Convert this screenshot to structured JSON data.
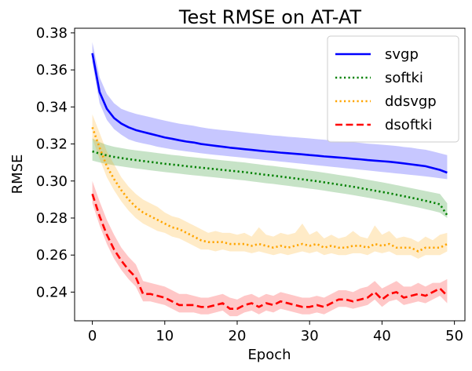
{
  "chart_data": {
    "type": "line",
    "title": "Test RMSE on AT-AT",
    "xlabel": "Epoch",
    "ylabel": "RMSE",
    "xlim": [
      -2.45,
      51.45
    ],
    "ylim": [
      0.2245,
      0.3825
    ],
    "xticks": [
      0,
      10,
      20,
      30,
      40,
      50
    ],
    "yticks": [
      0.24,
      0.26,
      0.28,
      0.3,
      0.32,
      0.34,
      0.36,
      0.38
    ],
    "ytick_labels": [
      "0.24",
      "0.26",
      "0.28",
      "0.30",
      "0.32",
      "0.34",
      "0.36",
      "0.38"
    ],
    "legend_position": "top-right",
    "x": [
      0,
      1,
      2,
      3,
      4,
      5,
      6,
      7,
      8,
      9,
      10,
      11,
      12,
      13,
      14,
      15,
      16,
      17,
      18,
      19,
      20,
      21,
      22,
      23,
      24,
      25,
      26,
      27,
      28,
      29,
      30,
      31,
      32,
      33,
      34,
      35,
      36,
      37,
      38,
      39,
      40,
      41,
      42,
      43,
      44,
      45,
      46,
      47,
      48,
      49
    ],
    "series": [
      {
        "name": "svgp",
        "color": "#0000ff",
        "band_color": "#0000ff",
        "dash": "solid",
        "values": [
          0.369,
          0.348,
          0.339,
          0.334,
          0.331,
          0.329,
          0.3275,
          0.3265,
          0.3255,
          0.3245,
          0.3235,
          0.3228,
          0.322,
          0.3213,
          0.3208,
          0.32,
          0.3195,
          0.319,
          0.3185,
          0.318,
          0.3176,
          0.3172,
          0.3168,
          0.3164,
          0.316,
          0.3157,
          0.3153,
          0.315,
          0.3147,
          0.3144,
          0.314,
          0.3137,
          0.3133,
          0.313,
          0.3127,
          0.3124,
          0.312,
          0.3117,
          0.3113,
          0.311,
          0.3107,
          0.3104,
          0.31,
          0.3095,
          0.309,
          0.3085,
          0.308,
          0.307,
          0.306,
          0.3045
        ],
        "upper": [
          0.375,
          0.356,
          0.347,
          0.342,
          0.339,
          0.3375,
          0.3363,
          0.3354,
          0.3345,
          0.3335,
          0.3326,
          0.3318,
          0.331,
          0.3304,
          0.3298,
          0.329,
          0.3284,
          0.3279,
          0.3275,
          0.3271,
          0.3267,
          0.3262,
          0.3258,
          0.3254,
          0.325,
          0.3246,
          0.3243,
          0.3239,
          0.3236,
          0.3233,
          0.323,
          0.3226,
          0.3223,
          0.3219,
          0.3216,
          0.3213,
          0.3209,
          0.3206,
          0.3202,
          0.3199,
          0.3196,
          0.3193,
          0.3189,
          0.3184,
          0.318,
          0.3174,
          0.3169,
          0.316,
          0.315,
          0.314
        ],
        "lower": [
          0.364,
          0.342,
          0.333,
          0.328,
          0.325,
          0.3225,
          0.3212,
          0.3203,
          0.3195,
          0.3185,
          0.3178,
          0.3171,
          0.3165,
          0.316,
          0.3155,
          0.315,
          0.3145,
          0.3141,
          0.3137,
          0.3133,
          0.3129,
          0.3125,
          0.3121,
          0.3117,
          0.3113,
          0.3109,
          0.3105,
          0.3101,
          0.3097,
          0.3093,
          0.3089,
          0.3085,
          0.3081,
          0.3077,
          0.3073,
          0.3069,
          0.3065,
          0.3061,
          0.3057,
          0.3053,
          0.3049,
          0.3045,
          0.3041,
          0.3037,
          0.3033,
          0.3029,
          0.3025,
          0.302,
          0.3015,
          0.301
        ]
      },
      {
        "name": "softki",
        "color": "#008000",
        "band_color": "#008000",
        "dash": "dotted",
        "values": [
          0.316,
          0.3148,
          0.3138,
          0.313,
          0.3124,
          0.3118,
          0.3113,
          0.3108,
          0.3103,
          0.3098,
          0.3093,
          0.3089,
          0.3085,
          0.308,
          0.3076,
          0.3072,
          0.3068,
          0.3064,
          0.306,
          0.3056,
          0.3052,
          0.3048,
          0.3043,
          0.3038,
          0.3033,
          0.3029,
          0.3024,
          0.3019,
          0.3014,
          0.3009,
          0.3004,
          0.2999,
          0.2993,
          0.2987,
          0.2981,
          0.2975,
          0.2969,
          0.2962,
          0.2955,
          0.2948,
          0.2941,
          0.2934,
          0.2926,
          0.2918,
          0.291,
          0.2902,
          0.2893,
          0.2884,
          0.2874,
          0.2815
        ],
        "upper": [
          0.323,
          0.321,
          0.3195,
          0.3185,
          0.3178,
          0.3171,
          0.3166,
          0.3161,
          0.3156,
          0.3151,
          0.3146,
          0.3141,
          0.3137,
          0.3132,
          0.3128,
          0.3124,
          0.312,
          0.3116,
          0.3112,
          0.3108,
          0.3104,
          0.31,
          0.3095,
          0.309,
          0.3085,
          0.3081,
          0.3076,
          0.3071,
          0.3066,
          0.3061,
          0.3056,
          0.3051,
          0.3045,
          0.3039,
          0.3033,
          0.3027,
          0.3021,
          0.3014,
          0.3007,
          0.3,
          0.2993,
          0.2986,
          0.2978,
          0.297,
          0.2962,
          0.2954,
          0.2946,
          0.2938,
          0.293,
          0.288
        ],
        "lower": [
          0.311,
          0.31,
          0.3092,
          0.3085,
          0.3079,
          0.3073,
          0.3068,
          0.3063,
          0.3058,
          0.3053,
          0.3048,
          0.3044,
          0.304,
          0.3035,
          0.3031,
          0.3027,
          0.3023,
          0.3019,
          0.3015,
          0.3011,
          0.3007,
          0.3003,
          0.2998,
          0.2993,
          0.2988,
          0.2984,
          0.2979,
          0.2974,
          0.2969,
          0.2964,
          0.2959,
          0.2954,
          0.2948,
          0.2942,
          0.2936,
          0.293,
          0.2924,
          0.2917,
          0.291,
          0.2903,
          0.2896,
          0.2889,
          0.2881,
          0.2873,
          0.2865,
          0.2857,
          0.2848,
          0.2839,
          0.2829,
          0.28
        ]
      },
      {
        "name": "ddsvgp",
        "color": "#ffa500",
        "band_color": "#ffa500",
        "dash": "dotted",
        "values": [
          0.329,
          0.318,
          0.308,
          0.301,
          0.295,
          0.29,
          0.286,
          0.283,
          0.281,
          0.279,
          0.277,
          0.275,
          0.274,
          0.272,
          0.27,
          0.268,
          0.267,
          0.267,
          0.267,
          0.266,
          0.266,
          0.266,
          0.265,
          0.266,
          0.265,
          0.264,
          0.265,
          0.264,
          0.265,
          0.266,
          0.265,
          0.266,
          0.264,
          0.265,
          0.264,
          0.264,
          0.265,
          0.265,
          0.264,
          0.266,
          0.265,
          0.266,
          0.264,
          0.264,
          0.264,
          0.262,
          0.264,
          0.264,
          0.264,
          0.266
        ],
        "upper": [
          0.336,
          0.326,
          0.316,
          0.309,
          0.302,
          0.297,
          0.293,
          0.29,
          0.288,
          0.286,
          0.283,
          0.281,
          0.28,
          0.278,
          0.276,
          0.274,
          0.272,
          0.273,
          0.272,
          0.272,
          0.271,
          0.272,
          0.27,
          0.275,
          0.271,
          0.27,
          0.272,
          0.271,
          0.272,
          0.277,
          0.271,
          0.273,
          0.269,
          0.271,
          0.269,
          0.27,
          0.273,
          0.27,
          0.269,
          0.276,
          0.271,
          0.273,
          0.269,
          0.27,
          0.269,
          0.267,
          0.27,
          0.268,
          0.271,
          0.272
        ],
        "lower": [
          0.323,
          0.312,
          0.302,
          0.295,
          0.289,
          0.284,
          0.28,
          0.277,
          0.275,
          0.273,
          0.272,
          0.27,
          0.269,
          0.267,
          0.265,
          0.263,
          0.263,
          0.262,
          0.263,
          0.262,
          0.262,
          0.262,
          0.261,
          0.262,
          0.261,
          0.26,
          0.261,
          0.26,
          0.261,
          0.262,
          0.261,
          0.262,
          0.26,
          0.261,
          0.26,
          0.26,
          0.261,
          0.261,
          0.26,
          0.262,
          0.261,
          0.262,
          0.26,
          0.26,
          0.26,
          0.258,
          0.26,
          0.26,
          0.26,
          0.262
        ]
      },
      {
        "name": "dsoftki",
        "color": "#ff0000",
        "band_color": "#ff0000",
        "dash": "dashed",
        "values": [
          0.293,
          0.281,
          0.271,
          0.263,
          0.257,
          0.252,
          0.248,
          0.239,
          0.239,
          0.238,
          0.237,
          0.235,
          0.233,
          0.233,
          0.233,
          0.232,
          0.232,
          0.233,
          0.234,
          0.231,
          0.231,
          0.233,
          0.234,
          0.232,
          0.234,
          0.233,
          0.235,
          0.234,
          0.233,
          0.232,
          0.232,
          0.233,
          0.232,
          0.234,
          0.236,
          0.236,
          0.235,
          0.236,
          0.237,
          0.24,
          0.236,
          0.239,
          0.24,
          0.237,
          0.238,
          0.239,
          0.238,
          0.24,
          0.242,
          0.238
        ],
        "upper": [
          0.3,
          0.289,
          0.279,
          0.271,
          0.264,
          0.259,
          0.255,
          0.246,
          0.245,
          0.244,
          0.243,
          0.241,
          0.239,
          0.239,
          0.238,
          0.237,
          0.237,
          0.238,
          0.239,
          0.237,
          0.236,
          0.238,
          0.239,
          0.237,
          0.239,
          0.238,
          0.24,
          0.239,
          0.238,
          0.237,
          0.237,
          0.238,
          0.237,
          0.239,
          0.241,
          0.241,
          0.24,
          0.242,
          0.243,
          0.246,
          0.242,
          0.244,
          0.246,
          0.243,
          0.243,
          0.245,
          0.243,
          0.245,
          0.245,
          0.247
        ],
        "lower": [
          0.288,
          0.276,
          0.266,
          0.258,
          0.252,
          0.247,
          0.243,
          0.235,
          0.235,
          0.234,
          0.233,
          0.231,
          0.229,
          0.229,
          0.229,
          0.228,
          0.228,
          0.229,
          0.23,
          0.227,
          0.227,
          0.229,
          0.23,
          0.228,
          0.23,
          0.229,
          0.231,
          0.23,
          0.229,
          0.228,
          0.228,
          0.229,
          0.228,
          0.23,
          0.232,
          0.232,
          0.231,
          0.232,
          0.233,
          0.236,
          0.232,
          0.235,
          0.236,
          0.233,
          0.234,
          0.235,
          0.234,
          0.236,
          0.238,
          0.234
        ]
      }
    ]
  }
}
